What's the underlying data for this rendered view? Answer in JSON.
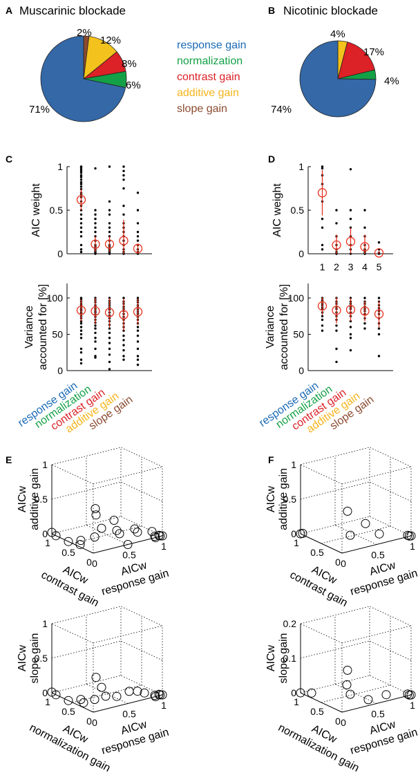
{
  "colors": {
    "response": "#3468a6",
    "normalization": "#14a046",
    "contrast": "#dc2127",
    "additive": "#f4c21c",
    "slope": "#8b4a2f",
    "fit": "#e6321e"
  },
  "legend": [
    {
      "label": "response gain",
      "color": "#1a6ab5"
    },
    {
      "label": "normalization",
      "color": "#14a046"
    },
    {
      "label": "contrast gain",
      "color": "#dc2127"
    },
    {
      "label": "additive gain",
      "color": "#f4b41c"
    },
    {
      "label": "slope gain",
      "color": "#8b4a2f"
    }
  ],
  "model_labels": [
    {
      "label": "response gain",
      "color": "#1a6ab5"
    },
    {
      "label": "normalization",
      "color": "#14a046"
    },
    {
      "label": "contrast gain",
      "color": "#dc2127"
    },
    {
      "label": "additive gain",
      "color": "#f4b41c"
    },
    {
      "label": "slope gain",
      "color": "#8b4a2f"
    }
  ],
  "chart_data": [
    {
      "panel": "A",
      "type": "pie",
      "title": "Muscarinic blockade",
      "slices": [
        {
          "name": "response gain",
          "value": 71,
          "label": "71%"
        },
        {
          "name": "normalization",
          "value": 6,
          "label": "6%"
        },
        {
          "name": "contrast gain",
          "value": 8,
          "label": "8%"
        },
        {
          "name": "additive gain",
          "value": 12,
          "label": "12%"
        },
        {
          "name": "slope gain",
          "value": 2,
          "label": "2%"
        }
      ]
    },
    {
      "panel": "B",
      "type": "pie",
      "title": "Nicotinic blockade",
      "slices": [
        {
          "name": "response gain",
          "value": 74,
          "label": "74%"
        },
        {
          "name": "normalization",
          "value": 4,
          "label": "4%"
        },
        {
          "name": "contrast gain",
          "value": 17,
          "label": "17%"
        },
        {
          "name": "additive gain",
          "value": 4,
          "label": "4%"
        },
        {
          "name": "slope gain",
          "value": 0,
          "label": ""
        }
      ]
    },
    {
      "panel": "C",
      "type": "scatter",
      "ylabel": [
        "AIC weight"
      ],
      "ylim": [
        0,
        1
      ],
      "yticks": [
        "0",
        "0.5",
        "1"
      ],
      "xtick_labels": [],
      "categories": [
        "response gain",
        "normalization",
        "contrast gain",
        "additive gain",
        "slope gain"
      ],
      "means": [
        0.62,
        0.11,
        0.11,
        0.15,
        0.06
      ],
      "errors": [
        0.12,
        0.09,
        0.09,
        0.24,
        0.06
      ],
      "points": [
        [
          1.0,
          0.99,
          0.97,
          0.95,
          0.93,
          0.9,
          0.88,
          0.85,
          0.82,
          0.8,
          0.77,
          0.74,
          0.7,
          0.68,
          0.65,
          0.6,
          0.55,
          0.5,
          0.45,
          0.4,
          0.35,
          0.3,
          0.25,
          0.2,
          0.1,
          0.05,
          0.02
        ],
        [
          0.98,
          0.5,
          0.45,
          0.4,
          0.35,
          0.3,
          0.25,
          0.2,
          0.15,
          0.1,
          0.08,
          0.05,
          0.03,
          0.02,
          0.01,
          0.0
        ],
        [
          1.0,
          0.6,
          0.5,
          0.45,
          0.35,
          0.3,
          0.25,
          0.2,
          0.15,
          0.1,
          0.08,
          0.05,
          0.03,
          0.02,
          0.01,
          0.0
        ],
        [
          1.0,
          0.95,
          0.9,
          0.85,
          0.75,
          0.55,
          0.45,
          0.35,
          0.3,
          0.25,
          0.2,
          0.15,
          0.1,
          0.05,
          0.02,
          0.0
        ],
        [
          0.7,
          0.5,
          0.35,
          0.25,
          0.2,
          0.15,
          0.1,
          0.05,
          0.02,
          0.0
        ]
      ]
    },
    {
      "panel": "C",
      "type": "scatter",
      "ylabel": [
        "Variance",
        "accounted for [%]"
      ],
      "ylim": [
        0,
        120
      ],
      "yticks": [
        "0",
        "50",
        "100"
      ],
      "xtick_labels": [],
      "categories": [
        "response gain",
        "normalization",
        "contrast gain",
        "additive gain",
        "slope gain"
      ],
      "means": [
        83,
        82,
        80,
        77,
        81
      ],
      "errors": [
        15,
        18,
        20,
        22,
        18
      ],
      "points": [
        [
          100,
          98,
          95,
          92,
          90,
          88,
          85,
          83,
          80,
          78,
          75,
          72,
          68,
          65,
          60,
          55,
          50,
          45,
          30,
          25,
          15,
          10
        ],
        [
          100,
          97,
          94,
          90,
          88,
          85,
          82,
          80,
          77,
          74,
          70,
          66,
          62,
          58,
          52,
          45,
          40,
          30,
          20,
          18
        ],
        [
          100,
          96,
          93,
          90,
          87,
          84,
          80,
          76,
          72,
          68,
          63,
          58,
          52,
          45,
          38,
          30,
          22,
          12,
          2
        ],
        [
          100,
          95,
          92,
          88,
          85,
          82,
          78,
          74,
          70,
          65,
          60,
          55,
          48,
          42,
          35,
          28,
          20,
          15
        ],
        [
          100,
          97,
          94,
          90,
          87,
          84,
          81,
          78,
          74,
          70,
          65,
          60,
          55,
          48,
          40,
          30,
          20,
          15,
          8
        ]
      ]
    },
    {
      "panel": "D",
      "type": "scatter",
      "ylabel": [
        "AIC weight"
      ],
      "ylim": [
        0,
        1
      ],
      "yticks": [
        "0",
        "0.5",
        "1"
      ],
      "xtick_labels": [
        "1",
        "2",
        "3",
        "4",
        "5"
      ],
      "categories": [
        "response gain",
        "normalization",
        "contrast gain",
        "additive gain",
        "slope gain"
      ],
      "means": [
        0.7,
        0.1,
        0.14,
        0.08,
        0.01
      ],
      "errors": [
        0.26,
        0.12,
        0.16,
        0.14,
        0.02
      ],
      "points": [
        [
          1.0,
          0.98,
          0.9,
          0.8,
          0.6,
          0.4,
          0.3,
          0.1,
          0.05
        ],
        [
          0.5,
          0.35,
          0.2,
          0.1,
          0.05,
          0.02,
          0.0
        ],
        [
          0.97,
          0.5,
          0.4,
          0.3,
          0.2,
          0.1,
          0.05,
          0.0
        ],
        [
          0.5,
          0.3,
          0.2,
          0.1,
          0.05,
          0.02,
          0.0
        ],
        [
          0.13,
          0.05,
          0.01,
          0.0
        ]
      ]
    },
    {
      "panel": "D",
      "type": "scatter",
      "ylabel": [
        "Variance",
        "accounted for [%]"
      ],
      "ylim": [
        0,
        120
      ],
      "yticks": [
        "0",
        "50",
        "100"
      ],
      "xtick_labels": [],
      "categories": [
        "response gain",
        "normalization",
        "contrast gain",
        "additive gain",
        "slope gain"
      ],
      "means": [
        89,
        83,
        84,
        82,
        78
      ],
      "errors": [
        12,
        18,
        16,
        14,
        18
      ],
      "points": [
        [
          100,
          97,
          95,
          92,
          90,
          87,
          85,
          80,
          75,
          70,
          62,
          55
        ],
        [
          100,
          95,
          92,
          88,
          85,
          80,
          75,
          70,
          62,
          55,
          30,
          12
        ],
        [
          100,
          95,
          92,
          88,
          85,
          80,
          75,
          68,
          60,
          50,
          45,
          28
        ],
        [
          100,
          95,
          92,
          88,
          85,
          82,
          78,
          72,
          65,
          58
        ],
        [
          100,
          95,
          90,
          86,
          82,
          78,
          72,
          65,
          58,
          50,
          20
        ]
      ]
    },
    {
      "panel": "E",
      "type": "scatter3d",
      "axis_labels": {
        "x": [
          "AICw",
          "response gain"
        ],
        "y": [
          "AICw",
          "contrast gain"
        ],
        "z": [
          "AICw",
          "additive gain"
        ]
      },
      "x_ticks": [
        "0",
        "0.5",
        "1"
      ],
      "y_ticks": [
        "0",
        "0.5",
        "1"
      ],
      "z_ticks": [
        "0",
        "0.5",
        "1"
      ],
      "zmax": 1,
      "points": [
        [
          1,
          0,
          0
        ],
        [
          0.98,
          0.02,
          0
        ],
        [
          0.95,
          0,
          0.02
        ],
        [
          0.92,
          0.05,
          0
        ],
        [
          0.9,
          0,
          0
        ],
        [
          0.85,
          0,
          0.1
        ],
        [
          0.7,
          0.1,
          0.1
        ],
        [
          0.6,
          0,
          0.2
        ],
        [
          0.5,
          0.2,
          0.1
        ],
        [
          0.4,
          0.1,
          0.2
        ],
        [
          0.3,
          0,
          0.4
        ],
        [
          0.2,
          0.3,
          0.1
        ],
        [
          0.05,
          0.4,
          0
        ],
        [
          0.0,
          0.6,
          0
        ],
        [
          0.1,
          0.1,
          0.5
        ],
        [
          0.15,
          0.2,
          0.55
        ],
        [
          0.0,
          0.9,
          0
        ],
        [
          0.0,
          1.0,
          0.02
        ],
        [
          0.3,
          0.3,
          0.2
        ],
        [
          0.0,
          0.3,
          0.1
        ],
        [
          0.5,
          0.0,
          0.0
        ]
      ]
    },
    {
      "panel": "F",
      "type": "scatter3d",
      "axis_labels": {
        "x": [
          "AICw",
          "response gain"
        ],
        "y": [
          "AICw",
          "contrast gain"
        ],
        "z": [
          "AICw",
          "additive gain"
        ]
      },
      "x_ticks": [
        "0",
        "0.5",
        "1"
      ],
      "y_ticks": [
        "0",
        "0.5",
        "1"
      ],
      "z_ticks": [
        "0",
        "0.5",
        "1"
      ],
      "zmax": 1,
      "points": [
        [
          1,
          0,
          0
        ],
        [
          0.98,
          0.01,
          0
        ],
        [
          0.95,
          0,
          0.02
        ],
        [
          0.6,
          0.1,
          0.1
        ],
        [
          0.4,
          0.1,
          0.3
        ],
        [
          0.2,
          0.2,
          0.5
        ],
        [
          0.0,
          1.0,
          0
        ],
        [
          0.0,
          0.95,
          0.02
        ],
        [
          0.3,
          0.3,
          0.1
        ]
      ]
    },
    {
      "panel": "E",
      "type": "scatter3d",
      "axis_labels": {
        "x": [
          "AICw",
          "response gain"
        ],
        "y": [
          "AICw",
          "normalization gain"
        ],
        "z": [
          "AICw",
          "slope gain"
        ]
      },
      "x_ticks": [
        "0",
        "0.5",
        "1"
      ],
      "y_ticks": [
        "0",
        "0.5",
        "1"
      ],
      "z_ticks": [
        "0",
        "0.5",
        "1"
      ],
      "zmax": 1,
      "points": [
        [
          1,
          0,
          0
        ],
        [
          0.98,
          0.02,
          0
        ],
        [
          0.95,
          0,
          0.02
        ],
        [
          0.92,
          0.05,
          0
        ],
        [
          0.9,
          0,
          0
        ],
        [
          0.8,
          0.1,
          0.05
        ],
        [
          0.7,
          0.1,
          0.1
        ],
        [
          0.55,
          0.05,
          0.15
        ],
        [
          0.4,
          0.1,
          0.1
        ],
        [
          0.3,
          0.2,
          0.1
        ],
        [
          0.2,
          0.3,
          0.05
        ],
        [
          0.1,
          0.4,
          0
        ],
        [
          0.0,
          0.6,
          0
        ],
        [
          0.1,
          0.1,
          0.45
        ],
        [
          0.0,
          0.9,
          0
        ],
        [
          0.0,
          1.0,
          0.01
        ],
        [
          0.3,
          0.3,
          0.2
        ],
        [
          0.0,
          0.3,
          0.1
        ]
      ]
    },
    {
      "panel": "F",
      "type": "scatter3d",
      "axis_labels": {
        "x": [
          "AICw",
          "response gain"
        ],
        "y": [
          "AICw",
          "normalization gain"
        ],
        "z": [
          "AICw",
          "slope gain"
        ]
      },
      "x_ticks": [
        "0",
        "0.5",
        "1"
      ],
      "y_ticks": [
        "0",
        "0.5",
        "1"
      ],
      "z_ticks": [
        "0",
        "0.1",
        "0.2"
      ],
      "zmax": 0.2,
      "points": [
        [
          1,
          0,
          0
        ],
        [
          0.98,
          0.01,
          0
        ],
        [
          0.95,
          0,
          0.005
        ],
        [
          0.7,
          0.1,
          0.01
        ],
        [
          0.5,
          0.2,
          0.0
        ],
        [
          0.3,
          0.3,
          0.02
        ],
        [
          0.2,
          0.2,
          0.1
        ],
        [
          0.0,
          1.0,
          0
        ],
        [
          0.1,
          0.9,
          0.0
        ],
        [
          0.25,
          0.3,
          0.05
        ]
      ]
    }
  ]
}
